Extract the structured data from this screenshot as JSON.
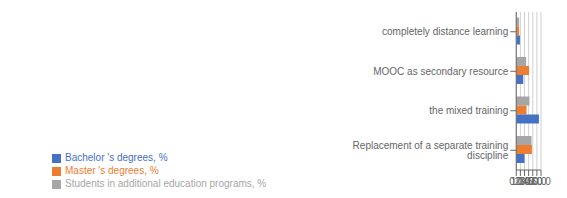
{
  "chart_data": {
    "type": "bar",
    "orientation": "horizontal",
    "categories": [
      "Replacement of a separate training discipline",
      "the mixed training",
      "MOOC as secondary resource",
      "completely distance learning"
    ],
    "series": [
      {
        "name": "Students in additional education programs, %",
        "color": "#a6a6a6",
        "values": [
          37,
          32,
          24,
          7
        ]
      },
      {
        "name": "Master 's degrees, %",
        "color": "#ed7d31",
        "values": [
          38,
          25,
          31,
          7
        ]
      },
      {
        "name": "Bachelor 's degrees, %",
        "color": "#4472c4",
        "values": [
          20,
          55,
          17,
          9
        ]
      }
    ],
    "xlim": [
      0,
      60
    ],
    "xticks": [
      {
        "value": 0.0,
        "label": "0.0"
      },
      {
        "value": 10.0,
        "label": "10.0"
      },
      {
        "value": 20.0,
        "label": "20.0"
      },
      {
        "value": 30.0,
        "label": "30.0"
      },
      {
        "value": 40.0,
        "label": "40.0"
      },
      {
        "value": 50.0,
        "label": "50.0"
      },
      {
        "value": 60.0,
        "label": "60.0"
      }
    ],
    "grid": true,
    "legend": "bottom"
  }
}
